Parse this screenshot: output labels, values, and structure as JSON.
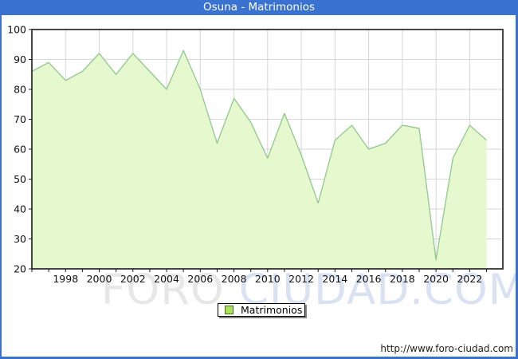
{
  "window": {
    "title": "Osuna - Matrimonios"
  },
  "colors": {
    "frame": "#3a72d1",
    "title_fg": "#ffffff",
    "plot_border": "#1a1a1a",
    "grid": "#d6d6d6",
    "area_fill": "#e6f8cd",
    "area_line": "#90c890",
    "tick_label": "#111111",
    "legend_swatch_fill": "#ace15e",
    "legend_swatch_border": "#447711",
    "watermark_part1": "#e7e7e7",
    "watermark_part2": "#d9e2f2",
    "footer_fg": "#222222"
  },
  "chart_data": {
    "type": "area",
    "title": "Osuna - Matrimonios",
    "series": [
      {
        "name": "Matrimonios",
        "x": [
          1996,
          1997,
          1998,
          1999,
          2000,
          2001,
          2002,
          2003,
          2004,
          2005,
          2006,
          2007,
          2008,
          2009,
          2010,
          2011,
          2012,
          2013,
          2014,
          2015,
          2016,
          2017,
          2018,
          2019,
          2020,
          2021,
          2022,
          2023
        ],
        "values": [
          86,
          89,
          83,
          86,
          92,
          85,
          92,
          86,
          80,
          93,
          80,
          62,
          77,
          69,
          57,
          72,
          58,
          42,
          63,
          68,
          60,
          62,
          68,
          67,
          23,
          57,
          68,
          63
        ]
      }
    ],
    "ylim": [
      20,
      100
    ],
    "ytick_step": 10,
    "xtick_labels": [
      1998,
      2000,
      2002,
      2004,
      2006,
      2008,
      2010,
      2012,
      2014,
      2016,
      2018,
      2020,
      2022
    ],
    "grid": true,
    "legend_position": "bottom-center"
  },
  "legend": {
    "label": "Matrimonios"
  },
  "watermark": {
    "part1": "FORO",
    "part2": "CIUDAD.COM"
  },
  "footer": {
    "url": "http://www.foro-ciudad.com"
  }
}
